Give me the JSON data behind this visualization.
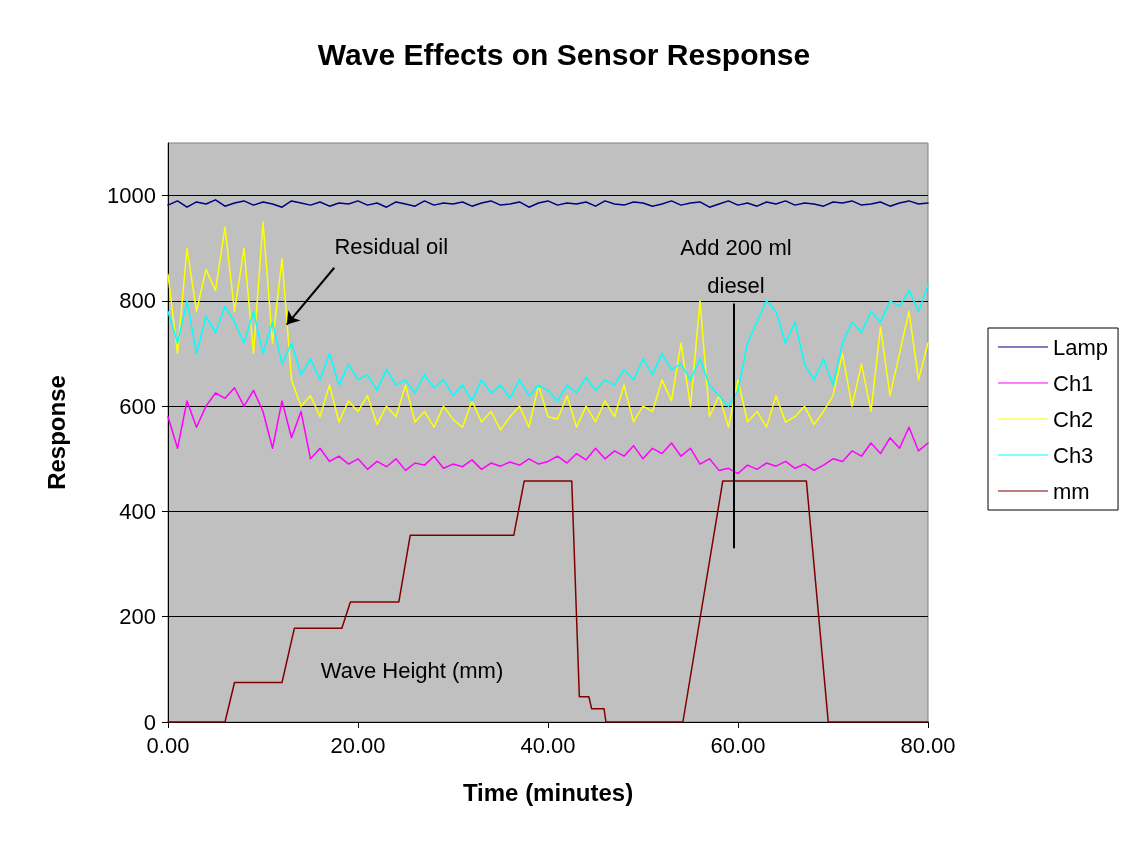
{
  "chart_data": {
    "type": "line",
    "title": "Wave Effects on Sensor Response",
    "xlabel": "Time (minutes)",
    "ylabel": "Response",
    "xlim": [
      0,
      80
    ],
    "xticks": [
      {
        "value": 0,
        "label": "0.00"
      },
      {
        "value": 20,
        "label": "20.00"
      },
      {
        "value": 40,
        "label": "40.00"
      },
      {
        "value": 60,
        "label": "60.00"
      },
      {
        "value": 80,
        "label": "80.00"
      }
    ],
    "ylim": [
      0,
      1100
    ],
    "yticks": [
      0,
      200,
      400,
      600,
      800,
      1000
    ],
    "grid": "y",
    "legend": "right",
    "marker": "none",
    "line_style": "solid",
    "x": [
      0,
      1,
      2,
      3,
      4,
      5,
      6,
      7,
      8,
      9,
      10,
      11,
      12,
      13,
      14,
      15,
      16,
      17,
      18,
      19,
      20,
      21,
      22,
      23,
      24,
      25,
      26,
      27,
      28,
      29,
      30,
      31,
      32,
      33,
      34,
      35,
      36,
      37,
      38,
      39,
      40,
      41,
      42,
      43,
      44,
      45,
      46,
      47,
      48,
      49,
      50,
      51,
      52,
      53,
      54,
      55,
      56,
      57,
      58,
      59,
      60,
      61,
      62,
      63,
      64,
      65,
      66,
      67,
      68,
      69,
      70,
      71,
      72,
      73,
      74,
      75,
      76,
      77,
      78,
      79,
      80
    ],
    "series": [
      {
        "name": "Lamp",
        "color": "#000080",
        "values": [
          982,
          990,
          978,
          988,
          984,
          992,
          980,
          986,
          990,
          982,
          988,
          984,
          978,
          990,
          986,
          982,
          988,
          980,
          986,
          984,
          990,
          982,
          986,
          978,
          988,
          984,
          980,
          990,
          982,
          986,
          984,
          988,
          980,
          986,
          990,
          982,
          984,
          988,
          978,
          986,
          990,
          982,
          986,
          984,
          988,
          980,
          990,
          984,
          982,
          988,
          986,
          980,
          984,
          990,
          982,
          986,
          988,
          978,
          984,
          990,
          982,
          986,
          980,
          988,
          984,
          990,
          982,
          986,
          984,
          980,
          988,
          986,
          990,
          982,
          984,
          988,
          980,
          986,
          990,
          984,
          986
        ]
      },
      {
        "name": "Ch1",
        "color": "#ff00ff",
        "values": [
          580,
          520,
          610,
          560,
          600,
          625,
          615,
          635,
          600,
          630,
          590,
          520,
          610,
          540,
          590,
          500,
          520,
          495,
          505,
          490,
          500,
          480,
          495,
          485,
          500,
          478,
          492,
          488,
          505,
          482,
          490,
          485,
          498,
          480,
          492,
          486,
          494,
          488,
          500,
          490,
          495,
          505,
          492,
          510,
          498,
          520,
          500,
          515,
          505,
          525,
          500,
          520,
          510,
          530,
          505,
          520,
          490,
          500,
          478,
          482,
          472,
          488,
          480,
          492,
          486,
          495,
          482,
          490,
          478,
          488,
          500,
          495,
          515,
          505,
          530,
          510,
          540,
          520,
          560,
          515,
          530
        ]
      },
      {
        "name": "Ch2",
        "color": "#ffff00",
        "values": [
          850,
          700,
          900,
          780,
          860,
          820,
          940,
          780,
          900,
          700,
          950,
          720,
          880,
          650,
          600,
          620,
          580,
          640,
          570,
          610,
          590,
          620,
          565,
          600,
          580,
          640,
          570,
          590,
          560,
          600,
          575,
          560,
          610,
          570,
          590,
          555,
          580,
          600,
          560,
          640,
          580,
          575,
          620,
          560,
          600,
          570,
          610,
          580,
          640,
          570,
          600,
          590,
          650,
          610,
          720,
          600,
          800,
          580,
          620,
          560,
          650,
          570,
          590,
          560,
          620,
          570,
          580,
          600,
          565,
          590,
          620,
          700,
          600,
          680,
          590,
          750,
          620,
          700,
          780,
          650,
          720
        ]
      },
      {
        "name": "Ch3",
        "color": "#00ffff",
        "values": [
          780,
          720,
          800,
          700,
          770,
          740,
          790,
          760,
          720,
          780,
          700,
          760,
          680,
          720,
          660,
          690,
          650,
          700,
          640,
          680,
          650,
          660,
          630,
          670,
          640,
          650,
          625,
          660,
          635,
          650,
          620,
          640,
          610,
          650,
          625,
          640,
          615,
          650,
          620,
          640,
          630,
          610,
          640,
          625,
          655,
          630,
          650,
          640,
          670,
          650,
          690,
          660,
          700,
          670,
          680,
          650,
          690,
          640,
          620,
          600,
          630,
          720,
          760,
          800,
          780,
          720,
          760,
          680,
          650,
          690,
          640,
          720,
          760,
          740,
          780,
          760,
          800,
          790,
          820,
          780,
          830
        ]
      },
      {
        "name": "mm",
        "color": "#800000",
        "x": [
          0,
          6,
          7,
          12,
          13.3,
          18.3,
          19.2,
          24.3,
          25.5,
          36.4,
          37.5,
          42.5,
          43.3,
          44.3,
          44.6,
          45.9,
          46.1,
          54.2,
          58.4,
          67.2,
          69.5,
          80
        ],
        "values": [
          0,
          0,
          75,
          75,
          178,
          178,
          228,
          228,
          355,
          355,
          458,
          458,
          48,
          48,
          25,
          25,
          0,
          0,
          458,
          458,
          0,
          0
        ]
      }
    ],
    "ref_lines": [
      {
        "axis": "x",
        "value": 59.6,
        "color": "#000000"
      }
    ],
    "annotations": [
      {
        "text": "Residual oil",
        "x": 12.5,
        "y": 755
      },
      "Add 200 ml\ndiesel",
      "Wave Height (mm)"
    ]
  }
}
